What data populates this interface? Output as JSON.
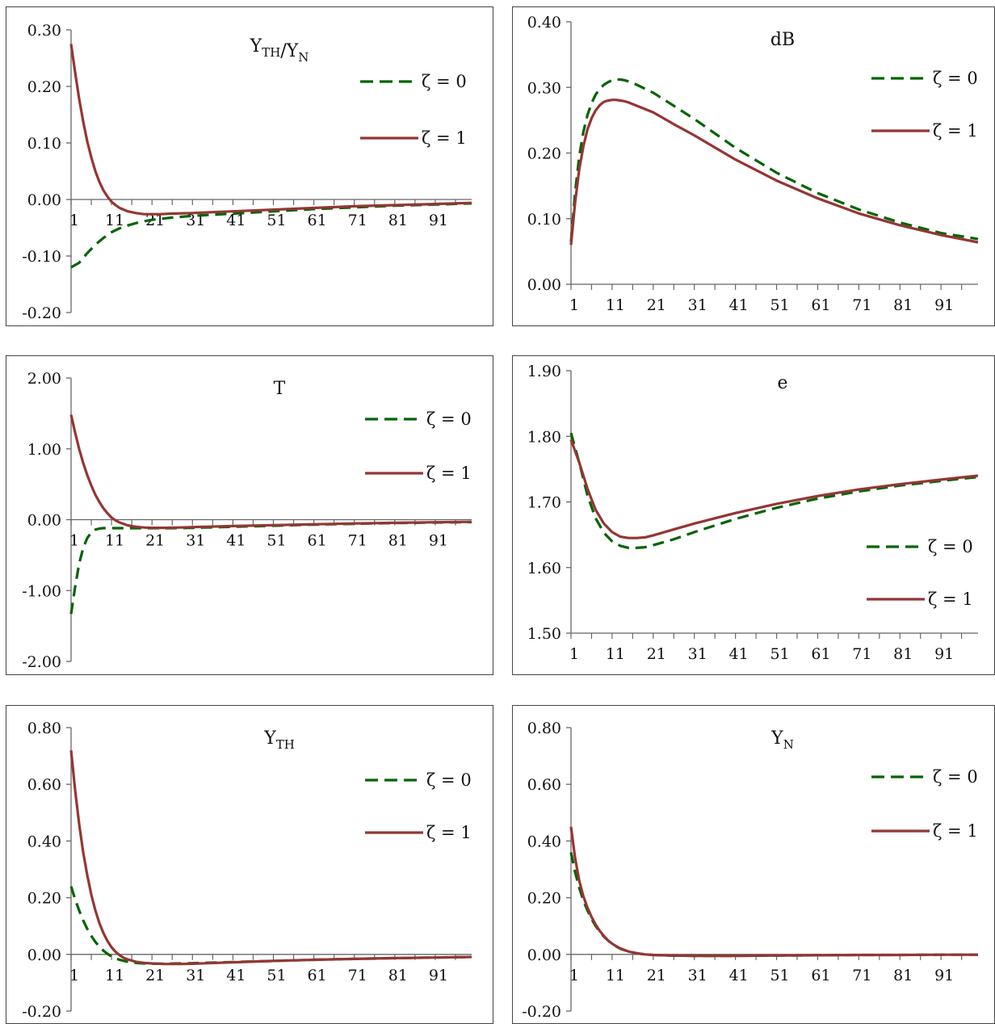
{
  "chart_data": [
    {
      "type": "line",
      "title": "Y_TH/Y_N",
      "title_parts": [
        {
          "t": "Y",
          "sub": "TH"
        },
        {
          "t": "/Y",
          "sub": "N"
        }
      ],
      "yticks": [
        "0.30",
        "0.20",
        "0.10",
        "0.00",
        "-0.10",
        "-0.20"
      ],
      "ylim": [
        -0.2,
        0.3
      ],
      "xticks": [
        "1",
        "11",
        "21",
        "31",
        "41",
        "51",
        "61",
        "71",
        "81",
        "91"
      ],
      "xlim": [
        1,
        100
      ],
      "legend_position": "top-right",
      "series": [
        {
          "name": "ζ = 0",
          "style": "dashed",
          "color": "#006400",
          "x": [
            1,
            3,
            5,
            7,
            9,
            11,
            13,
            15,
            18,
            21,
            26,
            31,
            41,
            51,
            61,
            71,
            81,
            91,
            100
          ],
          "values": [
            -0.12,
            -0.112,
            -0.095,
            -0.08,
            -0.068,
            -0.058,
            -0.051,
            -0.046,
            -0.04,
            -0.036,
            -0.032,
            -0.029,
            -0.025,
            -0.021,
            -0.017,
            -0.014,
            -0.011,
            -0.009,
            -0.007
          ]
        },
        {
          "name": "ζ = 1",
          "style": "solid",
          "color": "#943634",
          "x": [
            1,
            2,
            3,
            4,
            5,
            6,
            7,
            8,
            9,
            10,
            11,
            12,
            13,
            15,
            17,
            19,
            21,
            23,
            26,
            31,
            41,
            51,
            61,
            71,
            81,
            91,
            100
          ],
          "values": [
            0.275,
            0.225,
            0.178,
            0.138,
            0.103,
            0.074,
            0.05,
            0.031,
            0.016,
            0.005,
            -0.004,
            -0.01,
            -0.015,
            -0.021,
            -0.024,
            -0.026,
            -0.026,
            -0.026,
            -0.025,
            -0.024,
            -0.021,
            -0.018,
            -0.015,
            -0.012,
            -0.01,
            -0.008,
            -0.006
          ]
        }
      ]
    },
    {
      "type": "line",
      "title": "dB",
      "title_parts": [
        {
          "t": "dB",
          "sub": ""
        }
      ],
      "yticks": [
        "0.40",
        "0.30",
        "0.20",
        "0.10",
        "0.00"
      ],
      "ylim": [
        0.0,
        0.4
      ],
      "xticks": [
        "1",
        "11",
        "21",
        "31",
        "41",
        "51",
        "61",
        "71",
        "81",
        "91"
      ],
      "xlim": [
        1,
        100
      ],
      "legend_position": "top-right",
      "series": [
        {
          "name": "ζ = 0",
          "style": "dashed",
          "color": "#006400",
          "x": [
            1,
            2,
            3,
            4,
            5,
            6,
            7,
            8,
            9,
            10,
            11,
            12,
            13,
            14,
            15,
            17,
            21,
            26,
            31,
            41,
            51,
            61,
            71,
            81,
            91,
            100
          ],
          "values": [
            0.065,
            0.14,
            0.195,
            0.232,
            0.258,
            0.276,
            0.289,
            0.298,
            0.304,
            0.308,
            0.311,
            0.312,
            0.312,
            0.311,
            0.309,
            0.304,
            0.292,
            0.272,
            0.252,
            0.208,
            0.17,
            0.139,
            0.114,
            0.094,
            0.078,
            0.069
          ]
        },
        {
          "name": "ζ = 1",
          "style": "solid",
          "color": "#943634",
          "x": [
            1,
            2,
            3,
            4,
            5,
            6,
            7,
            8,
            9,
            10,
            11,
            12,
            13,
            14,
            15,
            17,
            21,
            26,
            31,
            41,
            51,
            61,
            71,
            81,
            91,
            100
          ],
          "values": [
            0.06,
            0.125,
            0.175,
            0.21,
            0.236,
            0.253,
            0.265,
            0.273,
            0.278,
            0.28,
            0.281,
            0.281,
            0.28,
            0.279,
            0.277,
            0.272,
            0.262,
            0.244,
            0.227,
            0.19,
            0.158,
            0.131,
            0.108,
            0.09,
            0.075,
            0.064
          ]
        }
      ]
    },
    {
      "type": "line",
      "title": "T",
      "title_parts": [
        {
          "t": "T",
          "sub": ""
        }
      ],
      "yticks": [
        "2.00",
        "1.00",
        "0.00",
        "-1.00",
        "-2.00"
      ],
      "ylim": [
        -2.0,
        2.0
      ],
      "xticks": [
        "1",
        "11",
        "21",
        "31",
        "41",
        "51",
        "61",
        "71",
        "81",
        "91"
      ],
      "xlim": [
        1,
        100
      ],
      "legend_position": "top-right",
      "series": [
        {
          "name": "ζ = 0",
          "style": "dashed",
          "color": "#006400",
          "x": [
            1,
            2,
            3,
            4,
            5,
            6,
            7,
            8,
            9,
            10,
            11,
            13,
            15,
            21,
            26,
            31,
            41,
            51,
            61,
            71,
            81,
            91,
            100
          ],
          "values": [
            -1.33,
            -0.95,
            -0.62,
            -0.4,
            -0.26,
            -0.18,
            -0.14,
            -0.125,
            -0.12,
            -0.12,
            -0.12,
            -0.12,
            -0.12,
            -0.12,
            -0.12,
            -0.115,
            -0.1,
            -0.085,
            -0.07,
            -0.058,
            -0.048,
            -0.04,
            -0.034
          ]
        },
        {
          "name": "ζ = 1",
          "style": "solid",
          "color": "#943634",
          "x": [
            1,
            2,
            3,
            4,
            5,
            6,
            7,
            8,
            9,
            10,
            11,
            12,
            13,
            15,
            17,
            19,
            21,
            24,
            28,
            31,
            41,
            51,
            61,
            71,
            81,
            91,
            100
          ],
          "values": [
            1.48,
            1.23,
            1.0,
            0.8,
            0.63,
            0.48,
            0.35,
            0.25,
            0.16,
            0.09,
            0.03,
            -0.01,
            -0.04,
            -0.08,
            -0.1,
            -0.11,
            -0.115,
            -0.115,
            -0.11,
            -0.105,
            -0.09,
            -0.077,
            -0.065,
            -0.054,
            -0.045,
            -0.037,
            -0.031
          ]
        }
      ]
    },
    {
      "type": "line",
      "title": "e",
      "title_parts": [
        {
          "t": "e",
          "sub": ""
        }
      ],
      "yticks": [
        "1.90",
        "1.80",
        "1.70",
        "1.60",
        "1.50"
      ],
      "ylim": [
        1.5,
        1.9
      ],
      "xticks": [
        "1",
        "11",
        "21",
        "31",
        "41",
        "51",
        "61",
        "71",
        "81",
        "91"
      ],
      "xlim": [
        1,
        100
      ],
      "legend_position": "bottom-right",
      "series": [
        {
          "name": "ζ = 0",
          "style": "dashed",
          "color": "#006400",
          "x": [
            1,
            3,
            5,
            7,
            9,
            11,
            13,
            15,
            17,
            19,
            21,
            26,
            31,
            41,
            51,
            61,
            71,
            81,
            91,
            100
          ],
          "values": [
            1.805,
            1.76,
            1.71,
            1.675,
            1.653,
            1.64,
            1.633,
            1.63,
            1.63,
            1.631,
            1.634,
            1.643,
            1.654,
            1.674,
            1.691,
            1.705,
            1.716,
            1.725,
            1.732,
            1.738
          ]
        },
        {
          "name": "ζ = 1",
          "style": "solid",
          "color": "#943634",
          "x": [
            1,
            3,
            5,
            7,
            9,
            11,
            13,
            15,
            17,
            19,
            21,
            26,
            31,
            41,
            51,
            61,
            71,
            81,
            91,
            100
          ],
          "values": [
            1.795,
            1.76,
            1.72,
            1.688,
            1.667,
            1.654,
            1.647,
            1.645,
            1.645,
            1.646,
            1.649,
            1.658,
            1.667,
            1.683,
            1.697,
            1.709,
            1.719,
            1.727,
            1.734,
            1.74
          ]
        }
      ]
    },
    {
      "type": "line",
      "title": "Y_TH",
      "title_parts": [
        {
          "t": "Y",
          "sub": "TH"
        }
      ],
      "yticks": [
        "0.80",
        "0.60",
        "0.40",
        "0.20",
        "0.00",
        "-0.20"
      ],
      "ylim": [
        -0.2,
        0.8
      ],
      "xticks": [
        "1",
        "11",
        "21",
        "31",
        "41",
        "51",
        "61",
        "71",
        "81",
        "91"
      ],
      "xlim": [
        1,
        100
      ],
      "legend_position": "top-right",
      "series": [
        {
          "name": "ζ = 0",
          "style": "dashed",
          "color": "#006400",
          "x": [
            1,
            2,
            3,
            4,
            5,
            6,
            7,
            8,
            9,
            10,
            11,
            12,
            13,
            15,
            17,
            19,
            21,
            24,
            28,
            31,
            41,
            51,
            61,
            71,
            81,
            91,
            100
          ],
          "values": [
            0.24,
            0.195,
            0.155,
            0.12,
            0.09,
            0.065,
            0.044,
            0.027,
            0.013,
            0.002,
            -0.007,
            -0.014,
            -0.019,
            -0.026,
            -0.03,
            -0.032,
            -0.033,
            -0.033,
            -0.032,
            -0.031,
            -0.027,
            -0.023,
            -0.019,
            -0.016,
            -0.013,
            -0.011,
            -0.009
          ]
        },
        {
          "name": "ζ = 1",
          "style": "solid",
          "color": "#943634",
          "x": [
            1,
            2,
            3,
            4,
            5,
            6,
            7,
            8,
            9,
            10,
            11,
            12,
            13,
            14,
            15,
            17,
            19,
            21,
            24,
            28,
            31,
            41,
            51,
            61,
            71,
            81,
            91,
            100
          ],
          "values": [
            0.72,
            0.58,
            0.46,
            0.36,
            0.28,
            0.21,
            0.155,
            0.11,
            0.075,
            0.047,
            0.025,
            0.009,
            -0.003,
            -0.012,
            -0.018,
            -0.026,
            -0.03,
            -0.032,
            -0.034,
            -0.034,
            -0.033,
            -0.028,
            -0.023,
            -0.019,
            -0.016,
            -0.013,
            -0.011,
            -0.009
          ]
        }
      ]
    },
    {
      "type": "line",
      "title": "Y_N",
      "title_parts": [
        {
          "t": "Y",
          "sub": "N"
        }
      ],
      "yticks": [
        "0.80",
        "0.60",
        "0.40",
        "0.20",
        "0.00",
        "-0.20"
      ],
      "ylim": [
        -0.2,
        0.8
      ],
      "xticks": [
        "1",
        "11",
        "21",
        "31",
        "41",
        "51",
        "61",
        "71",
        "81",
        "91"
      ],
      "xlim": [
        1,
        100
      ],
      "legend_position": "top-right",
      "series": [
        {
          "name": "ζ = 0",
          "style": "dashed",
          "color": "#006400",
          "x": [
            1,
            2,
            3,
            4,
            5,
            6,
            7,
            8,
            9,
            10,
            11,
            12,
            13,
            15,
            17,
            19,
            21,
            25,
            31,
            41,
            51,
            61,
            71,
            81,
            91,
            100
          ],
          "values": [
            0.36,
            0.29,
            0.235,
            0.19,
            0.155,
            0.125,
            0.1,
            0.08,
            0.063,
            0.049,
            0.037,
            0.028,
            0.02,
            0.01,
            0.004,
            0.0,
            -0.002,
            -0.004,
            -0.005,
            -0.005,
            -0.004,
            -0.003,
            -0.002,
            -0.002,
            -0.001,
            -0.001
          ]
        },
        {
          "name": "ζ = 1",
          "style": "solid",
          "color": "#943634",
          "x": [
            1,
            2,
            3,
            4,
            5,
            6,
            7,
            8,
            9,
            10,
            11,
            12,
            13,
            15,
            17,
            19,
            21,
            25,
            31,
            41,
            51,
            61,
            71,
            81,
            91,
            100
          ],
          "values": [
            0.45,
            0.34,
            0.26,
            0.205,
            0.165,
            0.132,
            0.105,
            0.083,
            0.065,
            0.05,
            0.038,
            0.029,
            0.021,
            0.01,
            0.004,
            0.0,
            -0.002,
            -0.004,
            -0.005,
            -0.005,
            -0.004,
            -0.003,
            -0.002,
            -0.002,
            -0.001,
            -0.001
          ]
        }
      ]
    }
  ]
}
